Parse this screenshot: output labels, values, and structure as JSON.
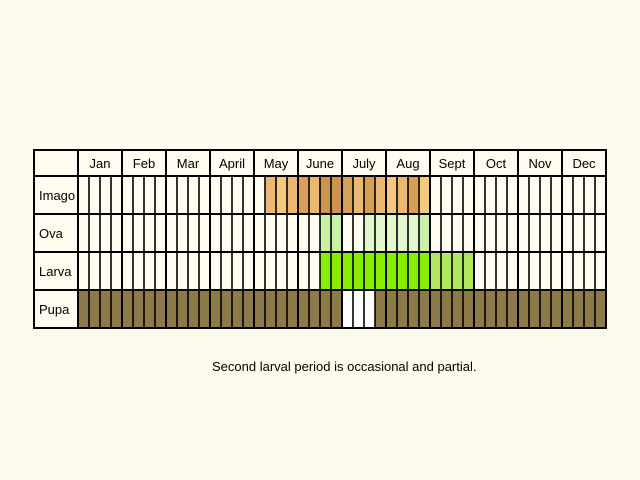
{
  "chart_data": {
    "type": "table",
    "months": [
      "Jan",
      "Feb",
      "Mar",
      "April",
      "May",
      "June",
      "July",
      "Aug",
      "Sept",
      "Oct",
      "Nov",
      "Dec"
    ],
    "quarters_per_month": 4,
    "colors": {
      "background": "#fdfbeb",
      "cell": "#fefdf0",
      "grid": "#000000",
      "imago_light": "#f3c880",
      "imago_mid": "#eab872",
      "imago_dark": "#d6a058",
      "imago_darker": "#cc9450",
      "ova_light": "#e3f7cf",
      "ova_mid": "#c8f0a8",
      "larva_bright": "#88ee00",
      "larva_light": "#aee85c",
      "pupa": "#8c7a48",
      "pupa_gap": "#ffffff"
    },
    "rows": [
      {
        "label": "Imago",
        "segments": [
          {
            "start": 17,
            "end": 18,
            "color": "imago_mid"
          },
          {
            "start": 18,
            "end": 19,
            "color": "imago_light"
          },
          {
            "start": 19,
            "end": 20,
            "color": "imago_mid"
          },
          {
            "start": 20,
            "end": 21,
            "color": "imago_dark"
          },
          {
            "start": 21,
            "end": 22,
            "color": "imago_mid"
          },
          {
            "start": 22,
            "end": 24,
            "color": "imago_darker"
          },
          {
            "start": 24,
            "end": 25,
            "color": "imago_dark"
          },
          {
            "start": 25,
            "end": 26,
            "color": "imago_mid"
          },
          {
            "start": 26,
            "end": 27,
            "color": "imago_dark"
          },
          {
            "start": 27,
            "end": 28,
            "color": "imago_mid"
          },
          {
            "start": 28,
            "end": 29,
            "color": "imago_light"
          },
          {
            "start": 29,
            "end": 30,
            "color": "imago_mid"
          },
          {
            "start": 30,
            "end": 31,
            "color": "imago_dark"
          },
          {
            "start": 31,
            "end": 32,
            "color": "imago_light"
          }
        ]
      },
      {
        "label": "Ova",
        "segments": [
          {
            "start": 22,
            "end": 24,
            "color": "ova_mid"
          },
          {
            "start": 26,
            "end": 27,
            "color": "ova_light"
          },
          {
            "start": 27,
            "end": 31,
            "color": "ova_light"
          },
          {
            "start": 31,
            "end": 32,
            "color": "ova_mid"
          }
        ]
      },
      {
        "label": "Larva",
        "segments": [
          {
            "start": 22,
            "end": 32,
            "color": "larva_bright"
          },
          {
            "start": 32,
            "end": 36,
            "color": "larva_light"
          }
        ]
      },
      {
        "label": "Pupa",
        "segments": [
          {
            "start": 0,
            "end": 24,
            "color": "pupa"
          },
          {
            "start": 24,
            "end": 27,
            "color": "pupa_gap"
          },
          {
            "start": 27,
            "end": 48,
            "color": "pupa"
          }
        ]
      }
    ]
  },
  "note": "Second larval period is occasional and partial."
}
